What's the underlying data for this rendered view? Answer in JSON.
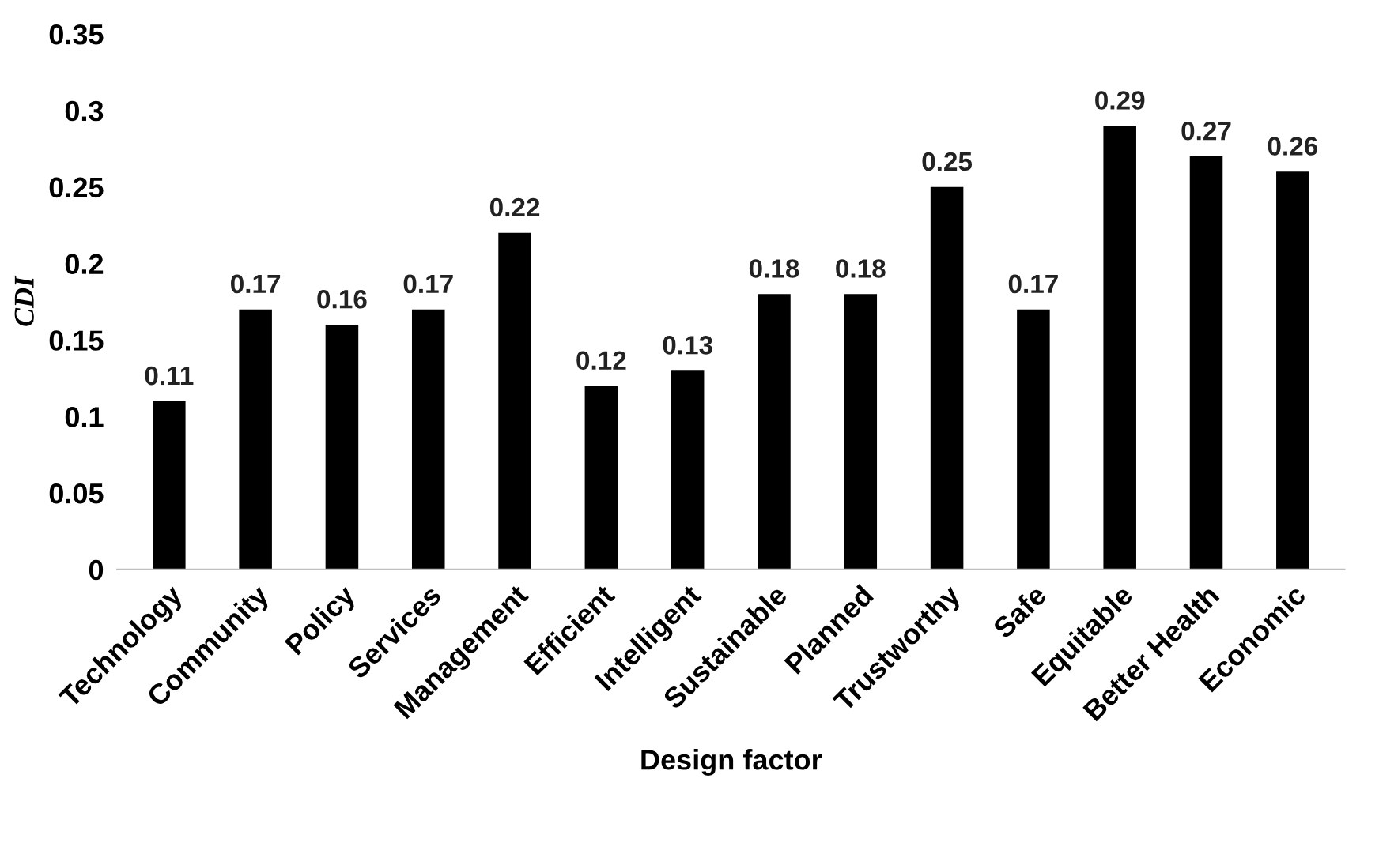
{
  "chart_data": {
    "type": "bar",
    "xlabel": "Design factor",
    "ylabel": "CDI",
    "categories": [
      "Technology",
      "Community",
      "Policy",
      "Services",
      "Management",
      "Efficient",
      "Intelligent",
      "Sustainable",
      "Planned",
      "Trustworthy",
      "Safe",
      "Equitable",
      "Better Health",
      "Economic"
    ],
    "values": [
      0.11,
      0.17,
      0.16,
      0.17,
      0.22,
      0.12,
      0.13,
      0.18,
      0.18,
      0.25,
      0.17,
      0.29,
      0.27,
      0.26
    ],
    "color": "#000000",
    "ylim": [
      0,
      0.35
    ],
    "yticks": [
      0,
      0.05,
      0.1,
      0.15,
      0.2,
      0.25,
      0.3,
      0.35
    ],
    "data_labels": true,
    "grid": false,
    "legend": false
  }
}
